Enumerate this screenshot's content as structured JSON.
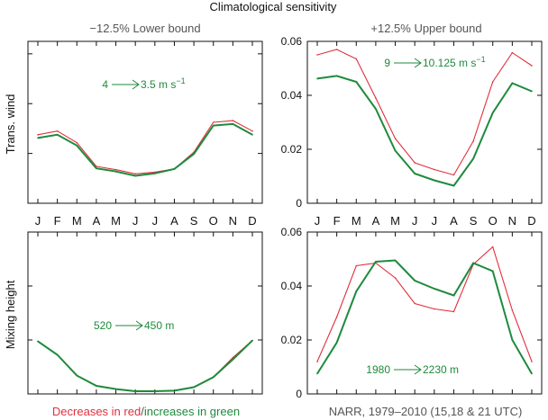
{
  "figure": {
    "title": "Climatological sensitivity",
    "col_titles": [
      "−12.5% Lower bound",
      "+12.5% Upper bound"
    ],
    "row_labels": [
      "Trans. wind",
      "Mixing height"
    ],
    "months": [
      "J",
      "F",
      "M",
      "A",
      "M",
      "J",
      "J",
      "A",
      "S",
      "O",
      "N",
      "D"
    ],
    "footer_left_red": "Decreases in red",
    "footer_left_sep": "/",
    "footer_left_green": "increases in green",
    "footer_right": "NARR, 1979–2010 (15,18 & 21 UTC)",
    "colors": {
      "red": "#e0303c",
      "green": "#1e8a3c",
      "axis": "#111111",
      "muted": "#555555"
    }
  },
  "chart_data": [
    {
      "type": "line",
      "panel": "top-left",
      "row_label": "Trans. wind",
      "title": "−12.5% Lower bound",
      "annotation": {
        "from": "4",
        "to": "3.5 m s",
        "superscript": "−1"
      },
      "x": [
        "J",
        "F",
        "M",
        "A",
        "M",
        "J",
        "J",
        "A",
        "S",
        "O",
        "N",
        "D"
      ],
      "ylim": [
        0,
        0.065
      ],
      "show_y_ticks": false,
      "series": [
        {
          "name": "red",
          "values": [
            0.0275,
            0.029,
            0.0243,
            0.0148,
            0.0135,
            0.0118,
            0.0125,
            0.0138,
            0.0205,
            0.0325,
            0.0332,
            0.029
          ]
        },
        {
          "name": "green",
          "values": [
            0.0262,
            0.0275,
            0.0232,
            0.014,
            0.0128,
            0.011,
            0.012,
            0.0138,
            0.0198,
            0.0312,
            0.0318,
            0.0275
          ]
        }
      ]
    },
    {
      "type": "line",
      "panel": "top-right",
      "title": "+12.5% Upper bound",
      "annotation": {
        "from": "9",
        "to": "10.125 m s",
        "superscript": "−1"
      },
      "x": [
        "J",
        "F",
        "M",
        "A",
        "M",
        "J",
        "J",
        "A",
        "S",
        "O",
        "N",
        "D"
      ],
      "ylim": [
        0,
        0.06
      ],
      "y_ticks": [
        "0",
        "0.02",
        "0.04",
        "0.06"
      ],
      "series": [
        {
          "name": "red",
          "values": [
            0.055,
            0.057,
            0.0535,
            0.039,
            0.024,
            0.015,
            0.0125,
            0.0105,
            0.023,
            0.045,
            0.0558,
            0.051
          ]
        },
        {
          "name": "green",
          "values": [
            0.0462,
            0.0472,
            0.045,
            0.035,
            0.0195,
            0.011,
            0.0085,
            0.0065,
            0.0165,
            0.0335,
            0.0445,
            0.0415
          ]
        }
      ]
    },
    {
      "type": "line",
      "panel": "bottom-left",
      "row_label": "Mixing height",
      "annotation": {
        "from": "520",
        "to": "450 m",
        "superscript": ""
      },
      "x": [
        "J",
        "F",
        "M",
        "A",
        "M",
        "J",
        "J",
        "A",
        "S",
        "O",
        "N",
        "D"
      ],
      "ylim": [
        0,
        0.06
      ],
      "show_y_ticks": false,
      "series": [
        {
          "name": "red",
          "values": [
            0.0195,
            0.0145,
            0.0068,
            0.003,
            0.0018,
            0.001,
            0.001,
            0.0012,
            0.0025,
            0.0062,
            0.0135,
            0.0198
          ]
        },
        {
          "name": "green",
          "values": [
            0.0195,
            0.0145,
            0.0068,
            0.003,
            0.0018,
            0.001,
            0.001,
            0.0012,
            0.0025,
            0.0062,
            0.0128,
            0.0198
          ]
        }
      ]
    },
    {
      "type": "line",
      "panel": "bottom-right",
      "annotation": {
        "from": "1980",
        "to": "2230 m",
        "superscript": ""
      },
      "x": [
        "J",
        "F",
        "M",
        "A",
        "M",
        "J",
        "J",
        "A",
        "S",
        "O",
        "N",
        "D"
      ],
      "ylim": [
        0,
        0.06
      ],
      "y_ticks": [
        "0",
        "0.02",
        "0.04",
        "0.06"
      ],
      "series": [
        {
          "name": "red",
          "values": [
            0.012,
            0.0285,
            0.0475,
            0.0485,
            0.043,
            0.0335,
            0.0315,
            0.0305,
            0.048,
            0.0545,
            0.031,
            0.012
          ]
        },
        {
          "name": "green",
          "values": [
            0.0075,
            0.019,
            0.038,
            0.049,
            0.0495,
            0.042,
            0.039,
            0.0365,
            0.0485,
            0.0455,
            0.02,
            0.0075
          ]
        }
      ]
    }
  ]
}
